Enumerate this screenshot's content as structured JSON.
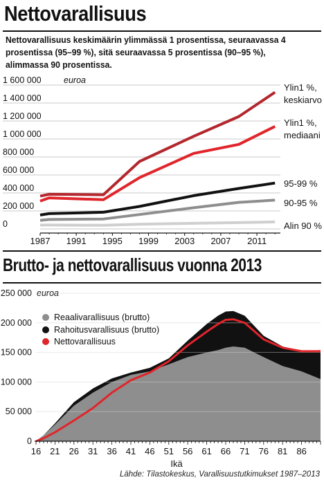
{
  "header": {
    "title": "Nettovarallisuus",
    "subtitle": "Nettovarallisuus keskimäärin ylimmässä 1 prosentissa, seuraavassa 4 prosentissa (95–99 %), sitä seuraavassa 5 prosentissa (90–95 %), alimmassa 90 prosentissa."
  },
  "chart2_title": "Brutto- ja nettovarallisuus vuonna 2013",
  "source": "Lähde: Tilastokeskus, Varallisuustutkimukset 1987–2013",
  "colors": {
    "dark_red": "#b3272d",
    "red": "#e0252b",
    "black": "#111111",
    "gray": "#8e8e8e",
    "light_gray": "#cfcfcf"
  },
  "chart_data": [
    {
      "type": "line",
      "unit": "euroa",
      "ylim": [
        0,
        1600000
      ],
      "yticks": [
        "0",
        "200 000",
        "400 000",
        "600 000",
        "800 000",
        "1 000 000",
        "1 200 000",
        "1 400 000",
        "1 600 000 euroa"
      ],
      "xticks": [
        "1987",
        "1991",
        "1995",
        "1999",
        "2003",
        "2007",
        "2011"
      ],
      "x": [
        1987,
        1988,
        1994,
        1998,
        2004,
        2009,
        2013
      ],
      "series": [
        {
          "name": "Ylin1 %, keskiarvo",
          "color": "#b3272d",
          "values": [
            365000,
            385000,
            380000,
            750000,
            1030000,
            1250000,
            1520000
          ]
        },
        {
          "name": "Ylin1 %, mediaani",
          "color": "#e0252b",
          "values": [
            310000,
            345000,
            325000,
            570000,
            840000,
            940000,
            1140000
          ]
        },
        {
          "name": "95-99 %",
          "color": "#111111",
          "values": [
            155000,
            170000,
            185000,
            250000,
            370000,
            450000,
            510000
          ]
        },
        {
          "name": "90-95 %",
          "color": "#8e8e8e",
          "values": [
            95000,
            105000,
            110000,
            160000,
            235000,
            295000,
            320000
          ]
        },
        {
          "name": "Alin 90 %",
          "color": "#cfcfcf",
          "values": [
            42000,
            43000,
            40000,
            52000,
            62000,
            70000,
            78000
          ]
        }
      ]
    },
    {
      "type": "area",
      "unit": "euroa",
      "ylim": [
        0,
        250000
      ],
      "yticks": [
        "0",
        "50 000",
        "100 000",
        "150 000",
        "200 000",
        "250 000 euroa"
      ],
      "xlabel": "Ikä",
      "xticks": [
        "16",
        "21",
        "26",
        "31",
        "36",
        "41",
        "46",
        "51",
        "56",
        "61",
        "66",
        "71",
        "76",
        "81",
        "86"
      ],
      "x": [
        16,
        18,
        21,
        26,
        31,
        36,
        41,
        46,
        51,
        56,
        61,
        64,
        66,
        68,
        71,
        76,
        81,
        86,
        91
      ],
      "series": [
        {
          "name": "Reaalivarallisuus (brutto)",
          "color": "#8e8e8e",
          "values": [
            0,
            10000,
            28000,
            60000,
            82000,
            100000,
            112000,
            118000,
            130000,
            142000,
            150000,
            154000,
            158000,
            160000,
            158000,
            142000,
            127000,
            118000,
            105000
          ]
        },
        {
          "name": "Rahoitusvarallisuus (brutto)",
          "color": "#111111",
          "values": [
            0,
            10000,
            30000,
            66000,
            89000,
            106000,
            116000,
            124000,
            140000,
            170000,
            198000,
            212000,
            219000,
            220000,
            212000,
            178000,
            160000,
            152000,
            154000
          ]
        },
        {
          "name": "Nettovarallisuus",
          "color": "#e0252b",
          "values": [
            0,
            5000,
            15000,
            35000,
            56000,
            82000,
            103000,
            116000,
            135000,
            162000,
            185000,
            198000,
            205000,
            206000,
            200000,
            172000,
            158000,
            152000,
            152000
          ]
        }
      ]
    }
  ]
}
